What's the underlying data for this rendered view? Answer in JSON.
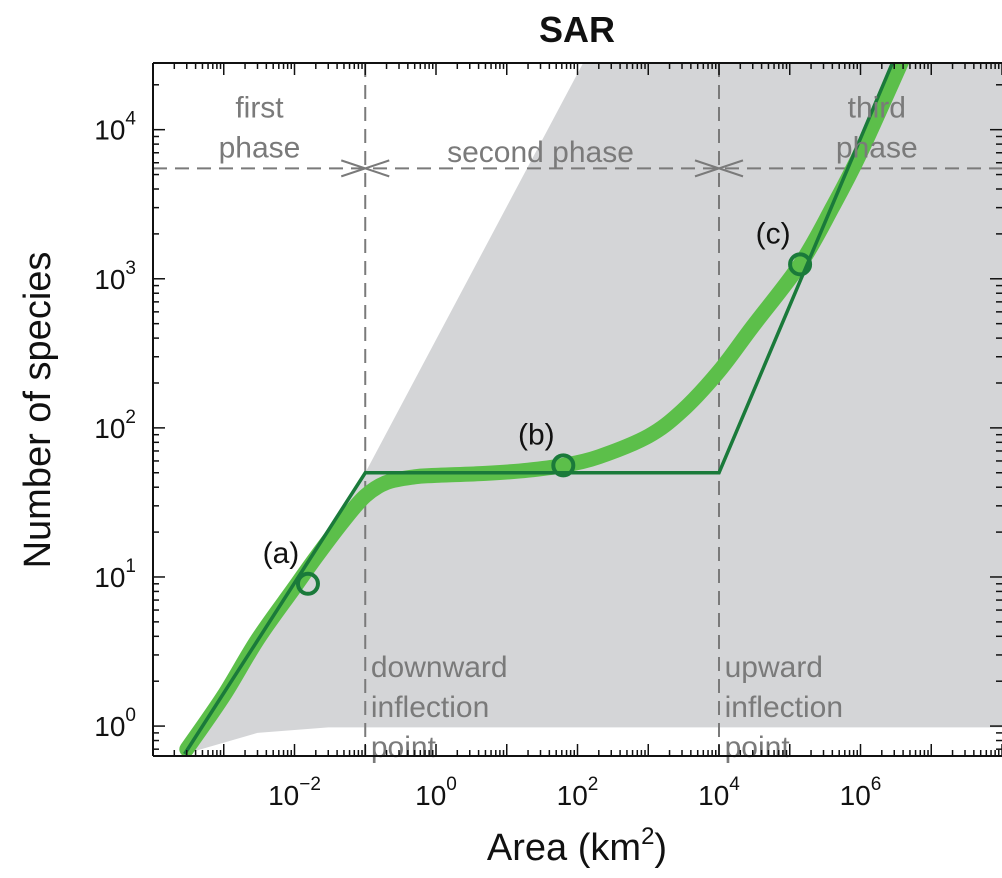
{
  "chart_data": {
    "type": "line",
    "title": "SAR",
    "xlabel": "Area (km",
    "xlabel_sup": "2",
    "xlabel_close": ")",
    "ylabel": "Number of species",
    "x_scale": "log",
    "y_scale": "log",
    "xlim": [
      0.0001,
      100000000
    ],
    "ylim": [
      0.63,
      28000
    ],
    "x_ticks": [
      {
        "value": 0.01,
        "base": "10",
        "exp": "−2"
      },
      {
        "value": 1,
        "base": "10",
        "exp": "0"
      },
      {
        "value": 100,
        "base": "10",
        "exp": "2"
      },
      {
        "value": 10000,
        "base": "10",
        "exp": "4"
      },
      {
        "value": 1000000,
        "base": "10",
        "exp": "6"
      }
    ],
    "y_ticks": [
      {
        "value": 1,
        "base": "10",
        "exp": "0"
      },
      {
        "value": 10,
        "base": "10",
        "exp": "1"
      },
      {
        "value": 100,
        "base": "10",
        "exp": "2"
      },
      {
        "value": 1000,
        "base": "10",
        "exp": "3"
      },
      {
        "value": 10000,
        "base": "10",
        "exp": "4"
      }
    ],
    "grid": false,
    "colors": {
      "smooth_curve": "#5cbf4a",
      "piecewise_line": "#1a7a3a",
      "shaded_region": "#d4d5d7",
      "guides": "#7a7a7a"
    },
    "series": [
      {
        "role": "smooth-curve",
        "x": [
          0.0003,
          0.001,
          0.003,
          0.01,
          0.02,
          0.05,
          0.1,
          0.2,
          0.5,
          1,
          5,
          20,
          63,
          200,
          1000,
          3000,
          10000,
          30000,
          140000,
          400000,
          1000000,
          4000000
        ],
        "y": [
          0.7,
          1.6,
          3.8,
          8.5,
          13.5,
          24,
          35,
          43,
          47,
          48,
          49.5,
          52,
          56,
          64,
          88,
          130,
          240,
          480,
          1250,
          3000,
          7000,
          30000
        ]
      },
      {
        "role": "piecewise-line",
        "x": [
          0.00028,
          0.1,
          10000,
          3000000
        ],
        "y": [
          0.65,
          50,
          50,
          30000
        ]
      }
    ],
    "shaded_region": {
      "upper": {
        "x": [
          0.1,
          120
        ],
        "y": [
          50,
          28000
        ]
      },
      "lower": {
        "x": [
          0.00028,
          0.003,
          0.03,
          100000000
        ],
        "y": [
          0.65,
          0.9,
          0.98,
          0.98
        ]
      }
    },
    "breakpoints": [
      0.1,
      10000
    ],
    "phase_divider_y": 5500,
    "marked_points": [
      {
        "label": "(a)",
        "x": 0.0155,
        "y": 9
      },
      {
        "label": "(b)",
        "x": 63,
        "y": 56
      },
      {
        "label": "(c)",
        "x": 140000,
        "y": 1250
      }
    ],
    "phases": [
      {
        "lines": [
          "first",
          "phase"
        ],
        "x": 0.0032,
        "y_top": 17000
      },
      {
        "lines": [
          "second phase"
        ],
        "x": 30,
        "y_top": 8500
      },
      {
        "lines": [
          "third",
          "phase"
        ],
        "x": 1700000,
        "y_top": 17000
      }
    ],
    "annotations": [
      {
        "lines": [
          "downward",
          "inflection",
          "point"
        ],
        "x": 0.12,
        "y_top": 3.0
      },
      {
        "lines": [
          "upward",
          "inflection",
          "point"
        ],
        "x": 12000,
        "y_top": 3.0
      }
    ]
  }
}
